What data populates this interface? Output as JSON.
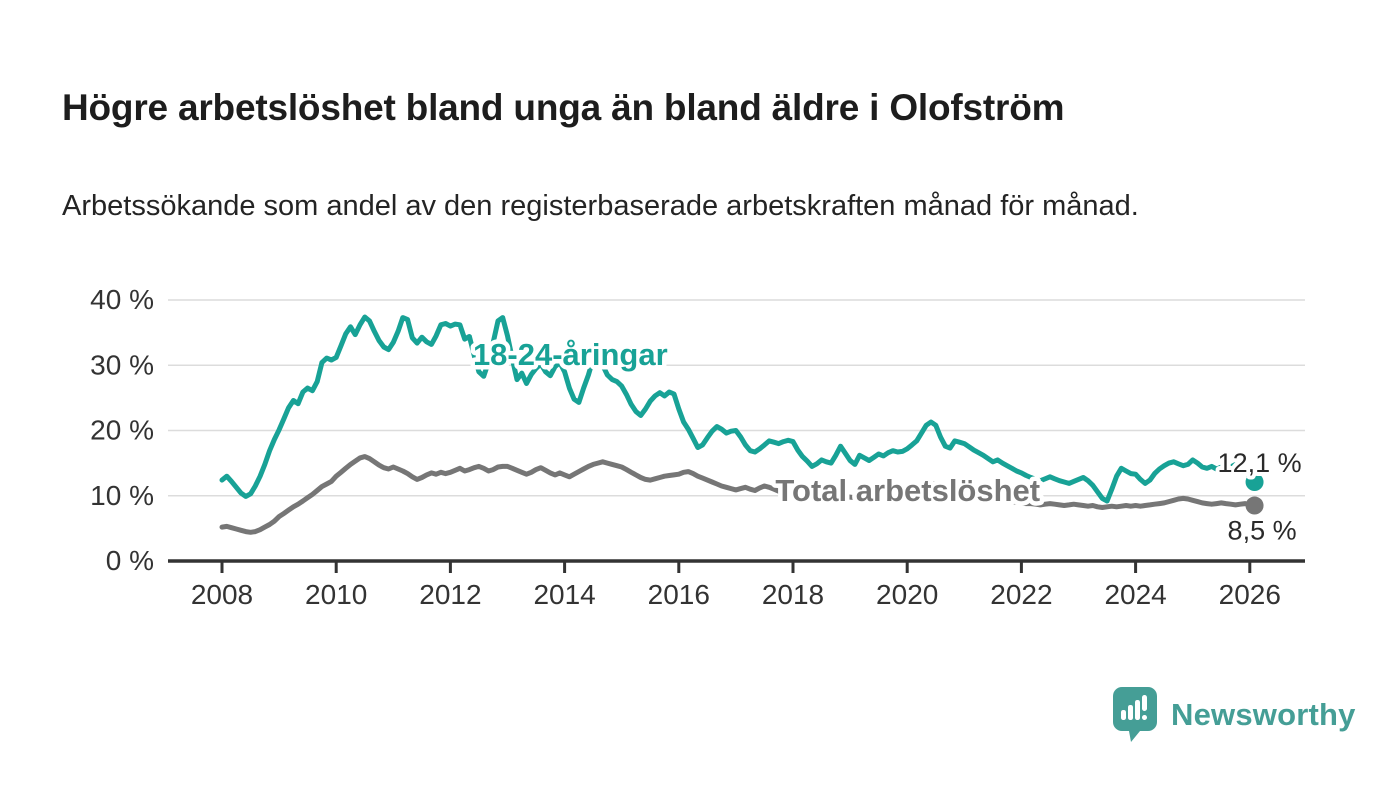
{
  "header": {
    "title": "Högre arbetslöshet bland unga än bland äldre i Olofström",
    "subtitle": "Arbetssökande som andel av den registerbaserade arbetskraften månad för månad."
  },
  "chart_data": {
    "type": "line",
    "title": "Högre arbetslöshet bland unga än bland äldre i Olofström",
    "subtitle": "Arbetssökande som andel av den registerbaserade arbetskraften månad för månad.",
    "x_unit": "month",
    "x_start": "2008-01",
    "x_end": "2026-02",
    "xlim": [
      2007.05,
      2027.05
    ],
    "ylim": [
      0,
      40
    ],
    "grid": "horizontal",
    "gridline_color": "#dcdcdc",
    "axis_color": "#333333",
    "tick_label_color": "#333333",
    "y_ticks": [
      {
        "value": 0,
        "label": "0 %"
      },
      {
        "value": 10,
        "label": "10 %"
      },
      {
        "value": 20,
        "label": "20 %"
      },
      {
        "value": 30,
        "label": "30 %"
      },
      {
        "value": 40,
        "label": "40 %"
      }
    ],
    "x_ticks": [
      {
        "value": 2008,
        "label": "2008"
      },
      {
        "value": 2010,
        "label": "2010"
      },
      {
        "value": 2012,
        "label": "2012"
      },
      {
        "value": 2014,
        "label": "2014"
      },
      {
        "value": 2016,
        "label": "2016"
      },
      {
        "value": 2018,
        "label": "2018"
      },
      {
        "value": 2020,
        "label": "2020"
      },
      {
        "value": 2022,
        "label": "2022"
      },
      {
        "value": 2024,
        "label": "2024"
      },
      {
        "value": 2026,
        "label": "2026"
      }
    ],
    "legend_position": "inline-labels",
    "series": [
      {
        "name": "Total arbetslöshet",
        "color": "#767676",
        "inline_label": {
          "text": "Total arbetslöshet",
          "year": 2020.01,
          "value": 10.9
        },
        "end_dot": true,
        "end_label": "8,5 %",
        "latest_value": 8.5,
        "values": [
          5.2,
          5.3,
          5.1,
          4.9,
          4.7,
          4.5,
          4.4,
          4.5,
          4.8,
          5.2,
          5.6,
          6.1,
          6.8,
          7.3,
          7.8,
          8.3,
          8.7,
          9.2,
          9.7,
          10.2,
          10.8,
          11.4,
          11.8,
          12.2,
          13.0,
          13.6,
          14.2,
          14.8,
          15.3,
          15.8,
          16.0,
          15.7,
          15.2,
          14.7,
          14.3,
          14.1,
          14.4,
          14.1,
          13.8,
          13.4,
          12.9,
          12.5,
          12.8,
          13.2,
          13.5,
          13.3,
          13.6,
          13.4,
          13.6,
          13.9,
          14.2,
          13.8,
          14.0,
          14.3,
          14.5,
          14.2,
          13.8,
          14.0,
          14.4,
          14.5,
          14.5,
          14.2,
          13.9,
          13.6,
          13.3,
          13.6,
          14.0,
          14.3,
          13.9,
          13.5,
          13.2,
          13.5,
          13.2,
          12.9,
          13.3,
          13.7,
          14.1,
          14.5,
          14.8,
          15.0,
          15.2,
          15.0,
          14.8,
          14.6,
          14.4,
          14.0,
          13.6,
          13.2,
          12.8,
          12.5,
          12.4,
          12.6,
          12.8,
          13.0,
          13.1,
          13.2,
          13.3,
          13.6,
          13.7,
          13.4,
          13.0,
          12.7,
          12.4,
          12.1,
          11.8,
          11.5,
          11.3,
          11.1,
          10.9,
          11.1,
          11.3,
          11.0,
          10.8,
          11.2,
          11.5,
          11.3,
          11.0,
          10.7,
          10.4,
          10.2,
          10.1,
          9.9,
          10.0,
          10.2,
          10.0,
          9.9,
          10.0,
          10.1,
          10.0,
          9.9,
          9.8,
          9.9,
          9.8,
          9.7,
          9.8,
          9.9,
          9.8,
          9.7,
          9.8,
          9.9,
          10.0,
          10.1,
          10.2,
          10.3,
          10.4,
          10.6,
          11.0,
          11.4,
          11.7,
          11.9,
          11.8,
          11.6,
          11.4,
          11.2,
          11.1,
          11.0,
          10.9,
          10.7,
          10.5,
          10.3,
          10.1,
          9.9,
          9.7,
          9.5,
          9.3,
          9.2,
          9.1,
          9.0,
          8.9,
          8.8,
          8.8,
          8.7,
          8.6,
          8.7,
          8.8,
          8.7,
          8.6,
          8.5,
          8.6,
          8.7,
          8.6,
          8.5,
          8.4,
          8.5,
          8.3,
          8.2,
          8.3,
          8.4,
          8.3,
          8.4,
          8.5,
          8.4,
          8.5,
          8.4,
          8.5,
          8.6,
          8.7,
          8.8,
          8.9,
          9.1,
          9.3,
          9.5,
          9.6,
          9.5,
          9.3,
          9.1,
          8.9,
          8.8,
          8.7,
          8.8,
          8.9,
          8.8,
          8.7,
          8.6,
          8.7,
          8.8,
          8.6,
          8.5
        ]
      },
      {
        "name": "18-24-åringar",
        "color": "#18a296",
        "inline_label": {
          "text": "18-24-åringar",
          "year": 2014.1,
          "value": 31.7
        },
        "end_dot": true,
        "end_label": "12,1 %",
        "latest_value": 12.1,
        "values": [
          12.4,
          13.0,
          12.2,
          11.3,
          10.4,
          9.9,
          10.3,
          11.5,
          13.0,
          14.8,
          16.9,
          18.6,
          20.1,
          21.8,
          23.5,
          24.6,
          24.1,
          25.9,
          26.5,
          26.1,
          27.5,
          30.4,
          31.1,
          30.8,
          31.2,
          33.0,
          34.8,
          35.9,
          34.7,
          36.2,
          37.4,
          36.8,
          35.2,
          33.8,
          32.8,
          32.4,
          33.5,
          35.2,
          37.3,
          37.0,
          34.2,
          33.4,
          34.3,
          33.6,
          33.2,
          34.5,
          36.2,
          36.4,
          36.0,
          36.3,
          36.2,
          34.0,
          34.4,
          31.5,
          29.0,
          28.3,
          30.5,
          33.5,
          36.8,
          37.3,
          34.5,
          31.0,
          27.8,
          28.8,
          27.2,
          28.6,
          29.5,
          30.2,
          29.0,
          28.4,
          29.8,
          30.4,
          29.0,
          26.5,
          24.8,
          24.3,
          26.5,
          28.5,
          31.0,
          31.5,
          30.0,
          28.5,
          27.8,
          27.5,
          26.8,
          25.5,
          24.0,
          22.9,
          22.3,
          23.3,
          24.5,
          25.3,
          25.8,
          25.3,
          25.9,
          25.6,
          23.3,
          21.3,
          20.2,
          18.8,
          17.4,
          17.8,
          18.9,
          19.9,
          20.6,
          20.2,
          19.6,
          19.9,
          20.0,
          19.0,
          17.8,
          16.9,
          16.7,
          17.2,
          17.8,
          18.4,
          18.2,
          18.0,
          18.3,
          18.5,
          18.3,
          17.0,
          16.0,
          15.3,
          14.5,
          14.9,
          15.5,
          15.2,
          15.0,
          16.2,
          17.6,
          16.5,
          15.4,
          14.8,
          16.2,
          15.8,
          15.4,
          15.9,
          16.4,
          16.1,
          16.6,
          16.9,
          16.7,
          16.8,
          17.2,
          17.8,
          18.4,
          19.6,
          20.8,
          21.3,
          20.8,
          19.0,
          17.6,
          17.3,
          18.4,
          18.2,
          18.0,
          17.5,
          17.0,
          16.6,
          16.2,
          15.7,
          15.2,
          15.5,
          15.0,
          14.6,
          14.2,
          13.8,
          13.5,
          13.1,
          12.8,
          12.5,
          12.3,
          12.6,
          12.9,
          12.6,
          12.3,
          12.1,
          11.9,
          12.2,
          12.5,
          12.8,
          12.3,
          11.6,
          10.6,
          9.6,
          9.2,
          11.0,
          13.0,
          14.2,
          13.8,
          13.4,
          13.3,
          12.5,
          11.9,
          12.4,
          13.4,
          14.1,
          14.6,
          15.0,
          15.2,
          14.9,
          14.6,
          14.8,
          15.5,
          15.0,
          14.4,
          14.2,
          14.5,
          14.1,
          14.4,
          14.7,
          14.4,
          14.8,
          15.3,
          14.0,
          12.8,
          12.1
        ]
      }
    ]
  },
  "branding": {
    "wordmark": "Newsworthy",
    "color": "#459e96",
    "logo_icon": "bar-chart-speech-bubble"
  }
}
